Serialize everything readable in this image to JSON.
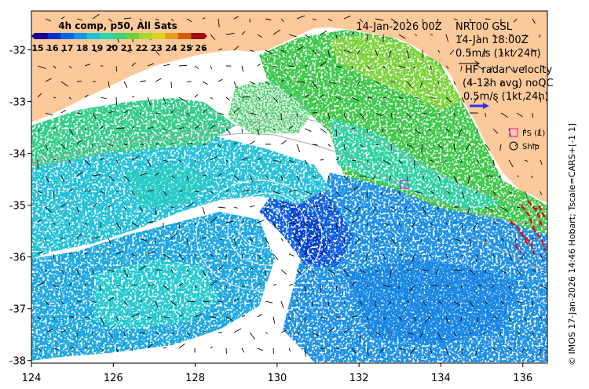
{
  "title": {
    "composite": "4h comp, p50, All Sats",
    "date": "14-Jan-2026 00Z",
    "station": "NRT00 GSL",
    "station_time": "14-Jan 18:00Z",
    "current_scale": "0.5m/s (1kt 24h)",
    "hf_line1": "HF radar velocity",
    "hf_line2": "(4-12h avg) noQC",
    "hf_scale": "0.5m/s (1kt 24h)"
  },
  "colorbar": {
    "ticks": [
      "15",
      "16",
      "17",
      "18",
      "19",
      "20",
      "21",
      "22",
      "23",
      "24",
      "25",
      "26"
    ],
    "colors": [
      "#1a0090",
      "#0030d0",
      "#0066e6",
      "#1496e8",
      "#22c0d8",
      "#28d8b0",
      "#3ad27a",
      "#6ad23a",
      "#a8d82a",
      "#dad21e",
      "#e6a01c",
      "#d45a14",
      "#a01010"
    ]
  },
  "axes": {
    "x_ticks": [
      "124",
      "126",
      "128",
      "130",
      "132",
      "134",
      "136"
    ],
    "y_ticks": [
      "-32",
      "-33",
      "-34",
      "-35",
      "-36",
      "-37",
      "-38"
    ],
    "lon_range": [
      124,
      136.6
    ],
    "lat_range": [
      -38.05,
      -31.25
    ]
  },
  "legend": {
    "fs_label": "FS (1)",
    "ship_label": "Ship",
    "fs_color": "#e000e0"
  },
  "markers": {
    "fs_site": {
      "lon": 133.1,
      "lat": -34.6
    }
  },
  "footer": "© IMOS 17-Jan-2026 14:46 Hobart; Tscale=CARS+[-1 1]",
  "colors": {
    "land": "#fcc99a",
    "ocean_white": "#ffffff",
    "hf_arrows": "#dd1111",
    "scale_arrow": "#3030e0"
  }
}
